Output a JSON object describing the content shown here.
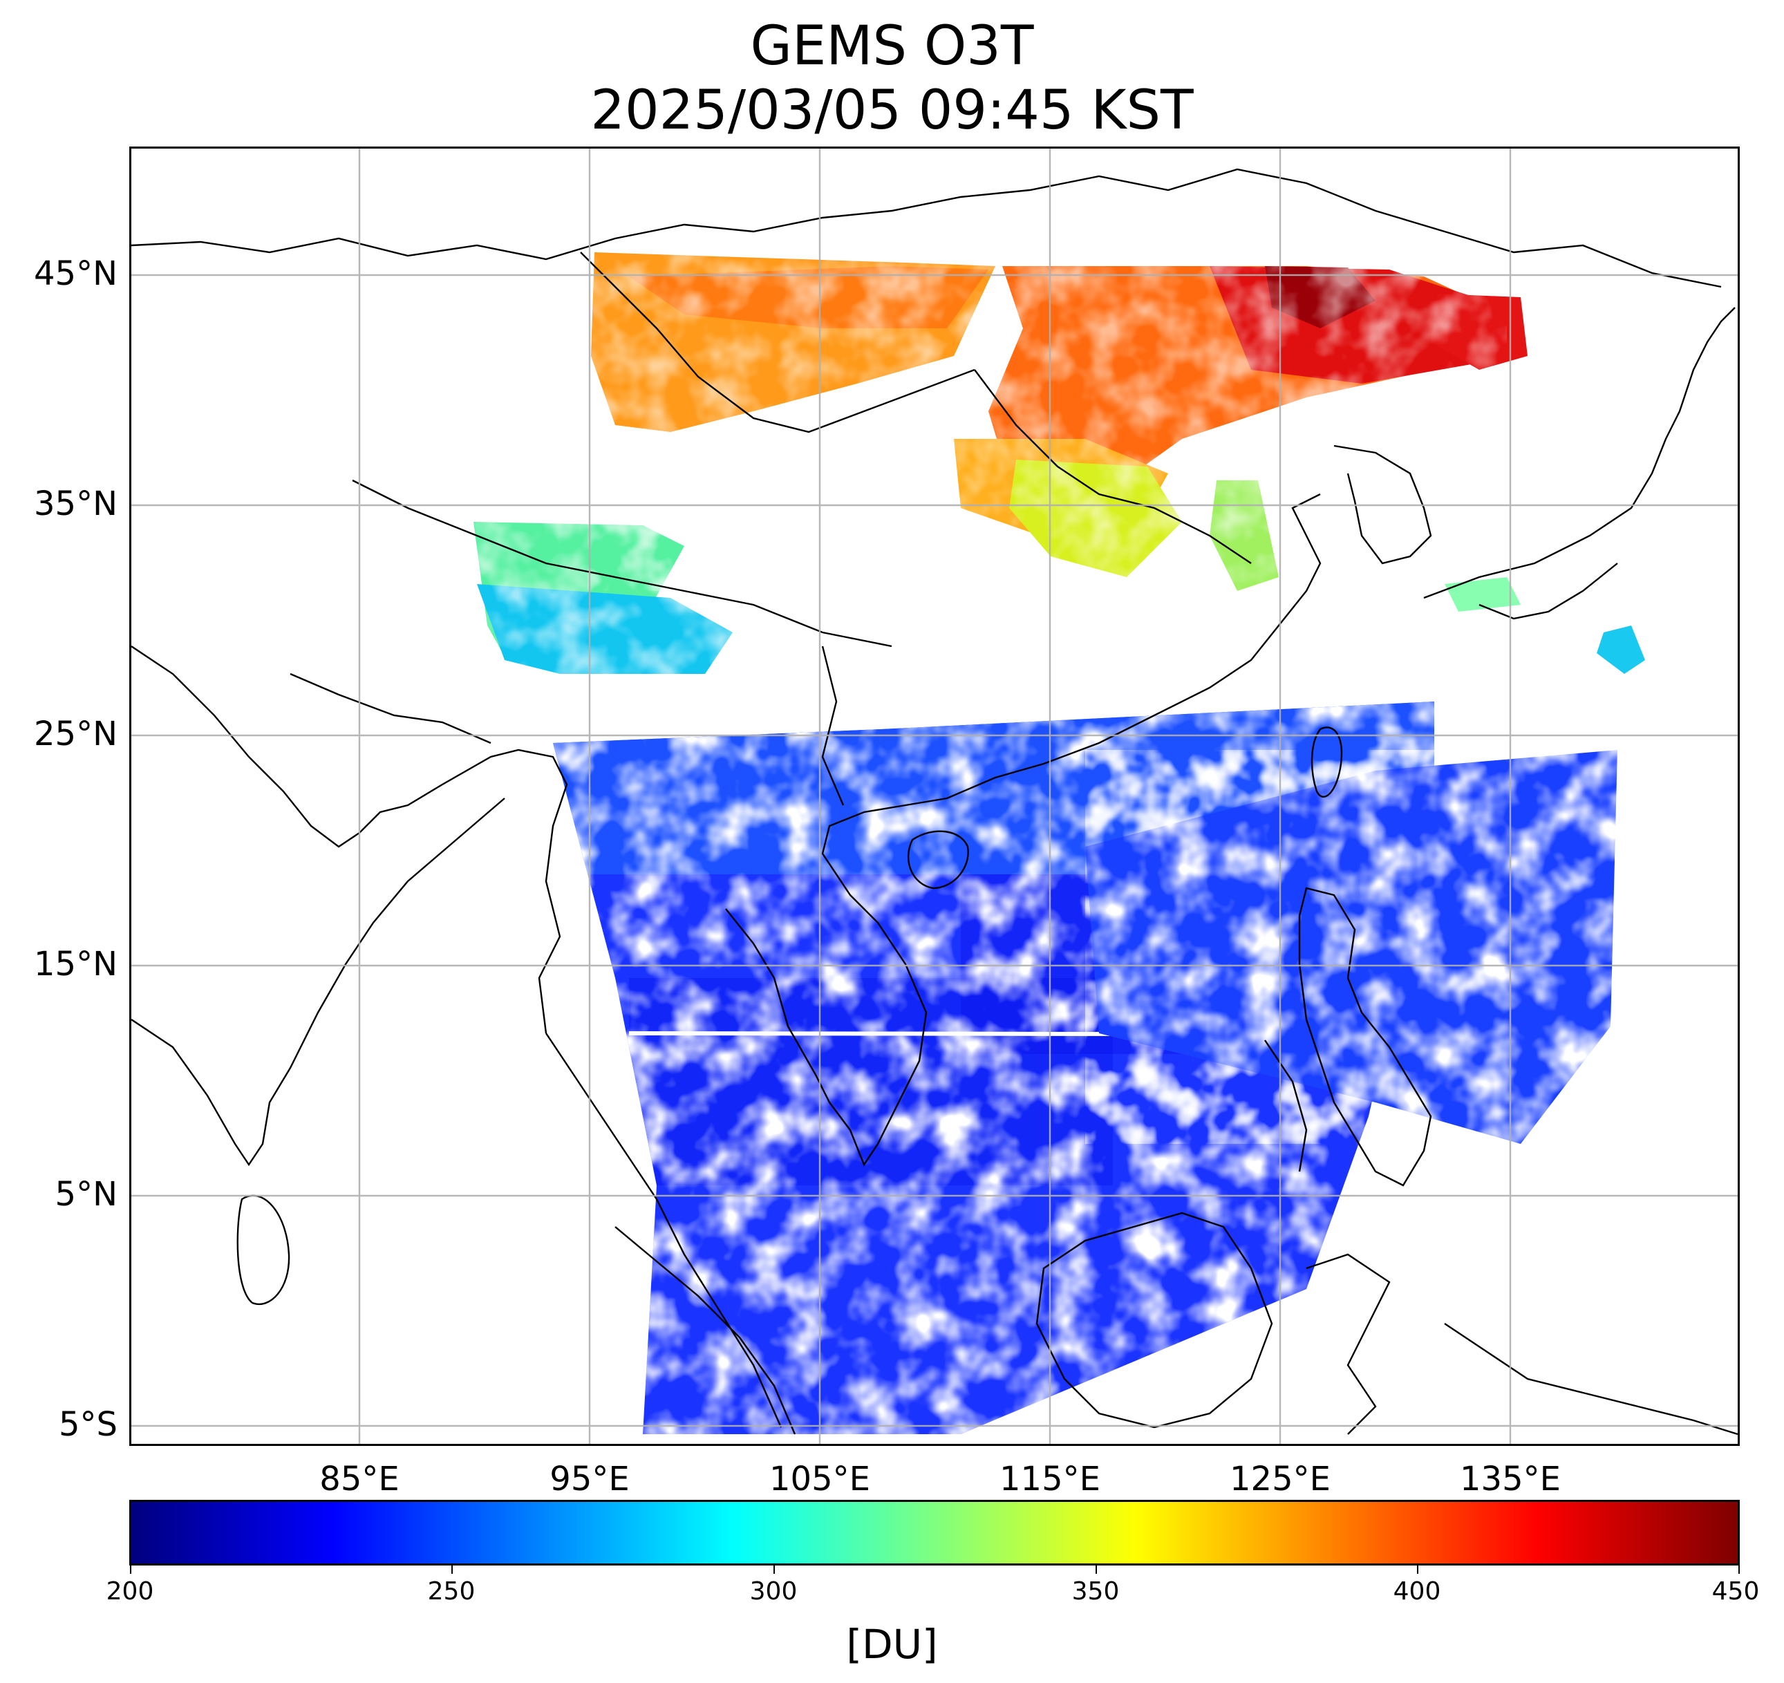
{
  "title": {
    "line1": "GEMS O3T",
    "line2": "2025/03/05 09:45 KST"
  },
  "map": {
    "lon_range": [
      75,
      145
    ],
    "lat_range": [
      -6,
      50.5
    ],
    "lat_ticks": [
      {
        "value": 45,
        "label": "45°N"
      },
      {
        "value": 35,
        "label": "35°N"
      },
      {
        "value": 25,
        "label": "25°N"
      },
      {
        "value": 15,
        "label": "15°N"
      },
      {
        "value": 5,
        "label": "5°N"
      },
      {
        "value": -5,
        "label": "5°S"
      }
    ],
    "lon_ticks": [
      {
        "value": 85,
        "label": "85°E"
      },
      {
        "value": 95,
        "label": "95°E"
      },
      {
        "value": 105,
        "label": "105°E"
      },
      {
        "value": 115,
        "label": "115°E"
      },
      {
        "value": 125,
        "label": "125°E"
      },
      {
        "value": 135,
        "label": "135°E"
      }
    ],
    "grid": true
  },
  "colorbar": {
    "min": 200,
    "max": 450,
    "colormap": "jet",
    "colors": [
      "#00007f",
      "#0000ff",
      "#007fff",
      "#00ffff",
      "#7fff7f",
      "#ffff00",
      "#ff7f00",
      "#ff0000",
      "#7f0000"
    ],
    "ticks": [
      {
        "value": 200,
        "label": "200"
      },
      {
        "value": 250,
        "label": "250"
      },
      {
        "value": 300,
        "label": "300"
      },
      {
        "value": 350,
        "label": "350"
      },
      {
        "value": 400,
        "label": "400"
      },
      {
        "value": 450,
        "label": "450"
      }
    ],
    "label": "[DU]"
  }
}
